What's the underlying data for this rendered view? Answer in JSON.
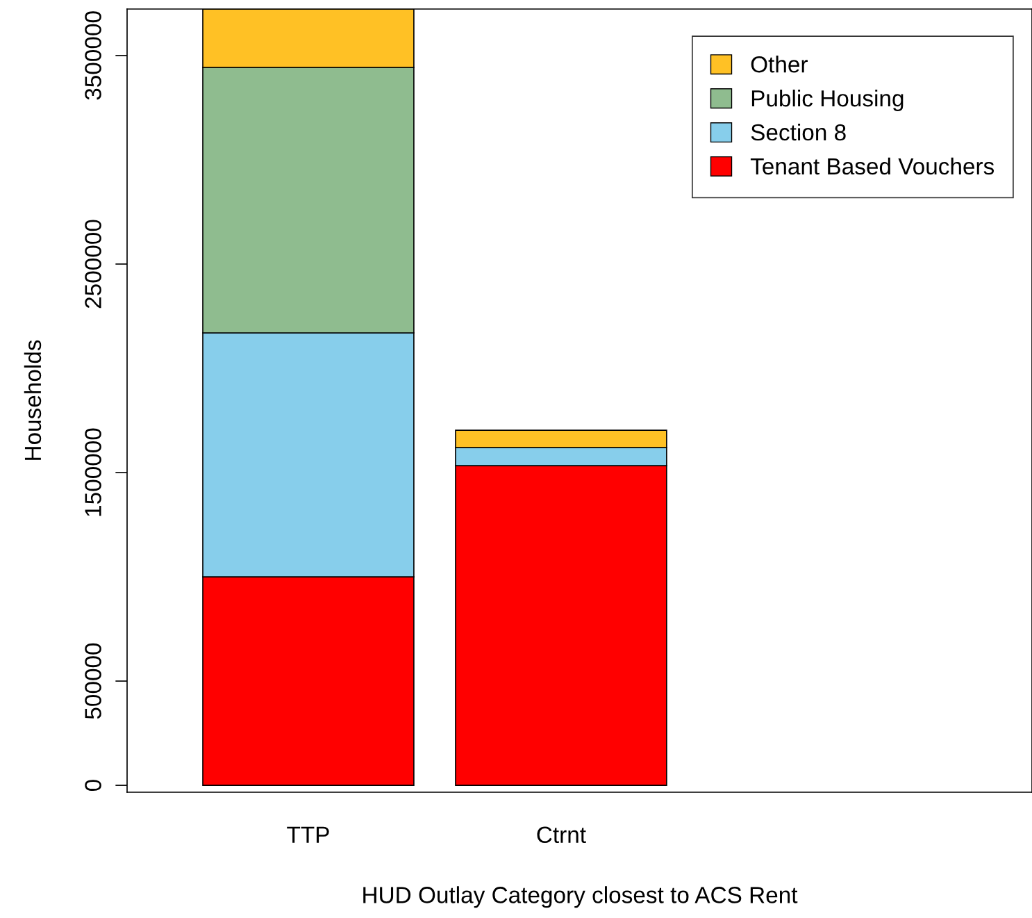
{
  "chart_data": {
    "type": "bar",
    "stacked": true,
    "xlabel": "HUD Outlay Category closest to ACS Rent",
    "ylabel": "Households",
    "categories": [
      "TTP",
      "Ctrnt"
    ],
    "series": [
      {
        "name": "Tenant Based Vouchers",
        "color": "#ff0000",
        "values": [
          1000000,
          1533000
        ]
      },
      {
        "name": "Section 8",
        "color": "#87ceeb",
        "values": [
          1170000,
          87000
        ]
      },
      {
        "name": "Public Housing",
        "color": "#8fbc8f",
        "values": [
          1273000,
          0
        ]
      },
      {
        "name": "Other",
        "color": "#ffc125",
        "values": [
          280000,
          83000
        ]
      }
    ],
    "ylim": [
      -33000,
      3723000
    ],
    "yticks": [
      0,
      500000,
      1500000,
      2500000,
      3500000
    ],
    "legend": "top right",
    "grid": false
  }
}
